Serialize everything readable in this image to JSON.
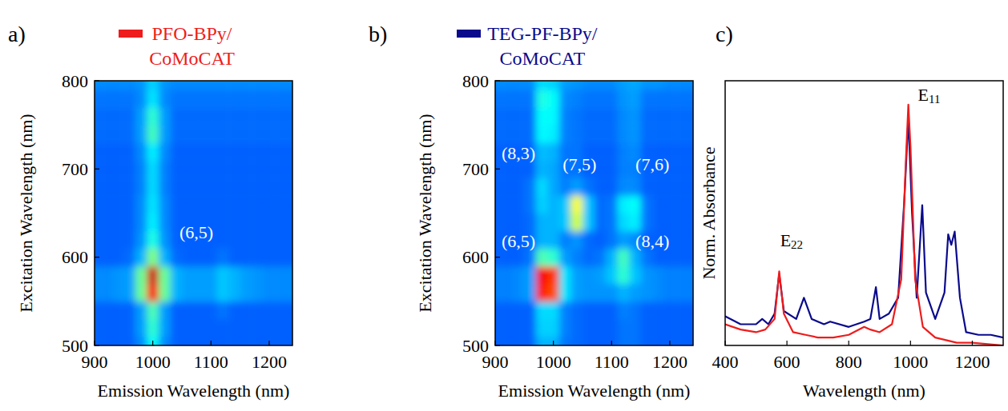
{
  "chart_data": [
    {
      "type": "heatmap",
      "panel_label": "a)",
      "title": "PFO-BPy/CoMoCAT",
      "color": "#ee1c1c",
      "x_label": "Emission Wavelength (nm)",
      "y_label": "Excitation Wavelength (nm)",
      "xlim": [
        900,
        1240
      ],
      "ylim": [
        500,
        800
      ],
      "xticks": [
        900,
        1000,
        1100,
        1200
      ],
      "yticks": [
        500,
        600,
        700,
        800
      ],
      "zlim": [
        0,
        100
      ],
      "x": [
        900,
        920,
        940,
        960,
        980,
        1000,
        1020,
        1040,
        1060,
        1080,
        1100,
        1120,
        1140,
        1160,
        1180,
        1200,
        1220,
        1240
      ],
      "y": [
        500,
        520,
        540,
        560,
        580,
        600,
        620,
        640,
        660,
        680,
        700,
        720,
        740,
        760,
        780,
        800
      ],
      "cells": [
        [
          22,
          22,
          22,
          22,
          26,
          38,
          26,
          22,
          22,
          22,
          22,
          22,
          22,
          22,
          22,
          22,
          22,
          22
        ],
        [
          22,
          22,
          22,
          22,
          28,
          42,
          28,
          22,
          22,
          22,
          22,
          22,
          22,
          22,
          22,
          22,
          22,
          22
        ],
        [
          22,
          22,
          22,
          22,
          28,
          45,
          28,
          22,
          22,
          22,
          22,
          24,
          22,
          22,
          22,
          22,
          22,
          22
        ],
        [
          26,
          26,
          27,
          28,
          48,
          88,
          48,
          30,
          28,
          28,
          28,
          32,
          30,
          28,
          27,
          26,
          26,
          26
        ],
        [
          26,
          26,
          27,
          28,
          48,
          92,
          48,
          30,
          28,
          28,
          28,
          32,
          30,
          28,
          27,
          26,
          26,
          26
        ],
        [
          22,
          22,
          22,
          23,
          30,
          50,
          30,
          23,
          22,
          22,
          22,
          24,
          22,
          22,
          22,
          22,
          22,
          22
        ],
        [
          22,
          22,
          22,
          22,
          27,
          40,
          27,
          22,
          22,
          22,
          22,
          22,
          22,
          22,
          22,
          22,
          22,
          22
        ],
        [
          22,
          22,
          22,
          22,
          26,
          36,
          26,
          22,
          22,
          22,
          22,
          22,
          22,
          22,
          22,
          22,
          22,
          22
        ],
        [
          22,
          22,
          22,
          22,
          26,
          35,
          26,
          22,
          22,
          22,
          22,
          22,
          22,
          22,
          22,
          22,
          22,
          22
        ],
        [
          22,
          22,
          22,
          22,
          25,
          34,
          25,
          22,
          22,
          22,
          22,
          22,
          22,
          22,
          22,
          22,
          22,
          22
        ],
        [
          22,
          22,
          22,
          22,
          25,
          34,
          25,
          22,
          22,
          22,
          22,
          22,
          22,
          22,
          22,
          22,
          22,
          22
        ],
        [
          22,
          22,
          22,
          22,
          26,
          36,
          26,
          22,
          22,
          22,
          22,
          22,
          22,
          22,
          22,
          22,
          22,
          22
        ],
        [
          23,
          23,
          23,
          23,
          28,
          44,
          28,
          23,
          23,
          23,
          23,
          23,
          23,
          23,
          23,
          23,
          23,
          23
        ],
        [
          23,
          23,
          23,
          23,
          28,
          42,
          28,
          23,
          23,
          23,
          23,
          23,
          23,
          23,
          23,
          23,
          23,
          23
        ],
        [
          24,
          24,
          24,
          24,
          26,
          35,
          26,
          24,
          24,
          24,
          24,
          24,
          24,
          24,
          24,
          24,
          24,
          24
        ],
        [
          26,
          26,
          26,
          26,
          27,
          33,
          27,
          26,
          26,
          26,
          26,
          26,
          26,
          26,
          26,
          26,
          26,
          26
        ]
      ],
      "annotations": [
        {
          "text": "(6,5)",
          "x": 1075,
          "y": 628
        }
      ]
    },
    {
      "type": "heatmap",
      "panel_label": "b)",
      "title": "TEG-PF-BPy/CoMoCAT",
      "color": "#0a0a8c",
      "x_label": "Emission Wavelength (nm)",
      "y_label": "Excitation Wavelength (nm)",
      "xlim": [
        900,
        1240
      ],
      "ylim": [
        500,
        800
      ],
      "xticks": [
        900,
        1000,
        1100,
        1200
      ],
      "yticks": [
        500,
        600,
        700,
        800
      ],
      "zlim": [
        0,
        100
      ],
      "x": [
        900,
        920,
        940,
        960,
        980,
        1000,
        1020,
        1040,
        1060,
        1080,
        1100,
        1120,
        1140,
        1160,
        1180,
        1200,
        1220,
        1240
      ],
      "y": [
        500,
        520,
        540,
        560,
        580,
        600,
        620,
        640,
        660,
        680,
        700,
        720,
        740,
        760,
        780,
        800
      ],
      "cells": [
        [
          22,
          22,
          22,
          22,
          30,
          30,
          24,
          23,
          22,
          22,
          22,
          24,
          24,
          22,
          22,
          22,
          22,
          22
        ],
        [
          22,
          22,
          22,
          22,
          33,
          33,
          25,
          23,
          22,
          22,
          22,
          24,
          24,
          22,
          22,
          22,
          22,
          22
        ],
        [
          22,
          22,
          22,
          22,
          34,
          34,
          25,
          23,
          22,
          22,
          22,
          25,
          24,
          22,
          22,
          22,
          22,
          22
        ],
        [
          25,
          25,
          26,
          28,
          85,
          80,
          35,
          28,
          27,
          27,
          27,
          30,
          28,
          27,
          26,
          25,
          25,
          25
        ],
        [
          25,
          25,
          26,
          28,
          88,
          82,
          35,
          28,
          27,
          28,
          32,
          42,
          32,
          27,
          26,
          25,
          25,
          25
        ],
        [
          22,
          22,
          22,
          24,
          45,
          42,
          28,
          25,
          23,
          24,
          30,
          44,
          30,
          24,
          22,
          22,
          22,
          22
        ],
        [
          22,
          22,
          22,
          23,
          30,
          30,
          25,
          27,
          23,
          22,
          24,
          28,
          26,
          22,
          22,
          22,
          22,
          22
        ],
        [
          22,
          22,
          22,
          23,
          30,
          30,
          32,
          58,
          32,
          23,
          24,
          34,
          36,
          24,
          22,
          22,
          22,
          22
        ],
        [
          22,
          22,
          22,
          24,
          33,
          30,
          32,
          62,
          32,
          23,
          24,
          36,
          38,
          24,
          22,
          22,
          22,
          22
        ],
        [
          22,
          22,
          22,
          24,
          34,
          29,
          25,
          28,
          24,
          22,
          22,
          26,
          26,
          22,
          22,
          22,
          22,
          22
        ],
        [
          22,
          22,
          22,
          22,
          30,
          29,
          24,
          24,
          22,
          22,
          22,
          25,
          25,
          22,
          22,
          22,
          22,
          22
        ],
        [
          22,
          22,
          22,
          22,
          31,
          30,
          24,
          24,
          22,
          22,
          22,
          25,
          26,
          22,
          22,
          22,
          22,
          22
        ],
        [
          23,
          23,
          23,
          23,
          37,
          36,
          25,
          24,
          23,
          23,
          23,
          26,
          27,
          23,
          23,
          23,
          23,
          23
        ],
        [
          23,
          23,
          23,
          23,
          38,
          37,
          25,
          24,
          23,
          23,
          23,
          26,
          27,
          23,
          23,
          23,
          23,
          23
        ],
        [
          24,
          24,
          24,
          24,
          40,
          38,
          26,
          25,
          24,
          24,
          24,
          27,
          28,
          24,
          24,
          24,
          24,
          24
        ],
        [
          26,
          26,
          26,
          26,
          34,
          33,
          28,
          27,
          26,
          26,
          26,
          28,
          29,
          27,
          27,
          26,
          26,
          26
        ]
      ],
      "annotations": [
        {
          "text": "(8,3)",
          "x": 940,
          "y": 718
        },
        {
          "text": "(7,5)",
          "x": 1045,
          "y": 705
        },
        {
          "text": "(7,6)",
          "x": 1170,
          "y": 705
        },
        {
          "text": "(6,5)",
          "x": 940,
          "y": 618
        },
        {
          "text": "(8,4)",
          "x": 1170,
          "y": 618
        }
      ]
    },
    {
      "type": "line",
      "panel_label": "c)",
      "x_label": "Wavelength (nm)",
      "y_label": "Norm. Absorbance",
      "xlim": [
        400,
        1300
      ],
      "ylim": [
        0,
        1
      ],
      "xticks": [
        400,
        600,
        800,
        1000,
        1200
      ],
      "tick_labels": "x",
      "series": [
        {
          "color": "#0a0a8c",
          "x": [
            400,
            450,
            500,
            520,
            540,
            560,
            575,
            590,
            630,
            655,
            680,
            720,
            740,
            800,
            850,
            870,
            888,
            900,
            930,
            960,
            980,
            993,
            1005,
            1020,
            1038,
            1050,
            1080,
            1110,
            1122,
            1132,
            1143,
            1160,
            1180,
            1220,
            1260,
            1300
          ],
          "values": [
            0.11,
            0.08,
            0.08,
            0.1,
            0.08,
            0.12,
            0.27,
            0.13,
            0.1,
            0.18,
            0.1,
            0.08,
            0.09,
            0.07,
            0.09,
            0.1,
            0.22,
            0.1,
            0.12,
            0.18,
            0.55,
            0.86,
            0.5,
            0.18,
            0.53,
            0.2,
            0.1,
            0.2,
            0.42,
            0.38,
            0.43,
            0.18,
            0.05,
            0.04,
            0.04,
            0.03
          ]
        },
        {
          "color": "#ee1c1c",
          "x": [
            400,
            450,
            500,
            530,
            560,
            575,
            590,
            620,
            660,
            700,
            750,
            800,
            850,
            870,
            900,
            940,
            970,
            985,
            993,
            1000,
            1015,
            1040,
            1080,
            1150,
            1200,
            1300
          ],
          "values": [
            0.08,
            0.06,
            0.05,
            0.06,
            0.1,
            0.28,
            0.12,
            0.05,
            0.04,
            0.03,
            0.03,
            0.04,
            0.07,
            0.06,
            0.05,
            0.08,
            0.25,
            0.7,
            0.91,
            0.75,
            0.25,
            0.07,
            0.03,
            0.01,
            0.01,
            0.0
          ]
        }
      ],
      "annotations": [
        {
          "text": "E",
          "subscript": "22",
          "x": 615,
          "y": 0.4
        },
        {
          "text": "E",
          "subscript": "11",
          "x": 1060,
          "y": 0.95
        }
      ]
    }
  ]
}
